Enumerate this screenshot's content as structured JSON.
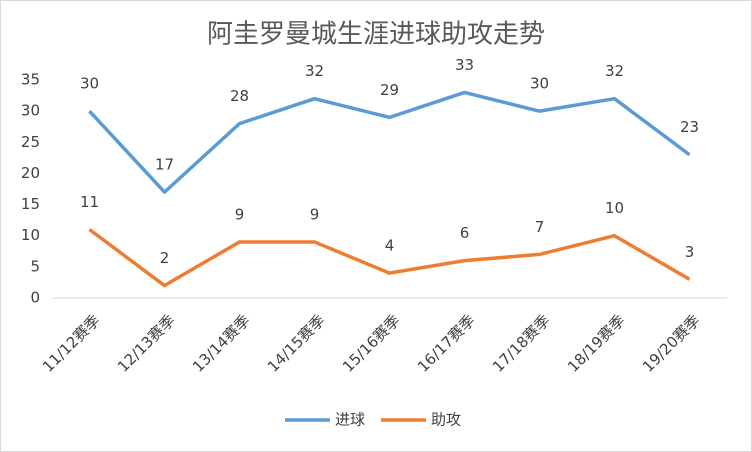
{
  "chart_data": {
    "type": "line",
    "title": "阿圭罗曼城生涯进球助攻走势",
    "categories": [
      "11/12赛季",
      "12/13赛季",
      "13/14赛季",
      "14/15赛季",
      "15/16赛季",
      "16/17赛季",
      "17/18赛季",
      "18/19赛季",
      "19/20赛季"
    ],
    "series": [
      {
        "name": "进球",
        "color": "#5b9bd5",
        "values": [
          30,
          17,
          28,
          32,
          29,
          33,
          30,
          32,
          23
        ]
      },
      {
        "name": "助攻",
        "color": "#ed7d31",
        "values": [
          11,
          2,
          9,
          9,
          4,
          6,
          7,
          10,
          3
        ]
      }
    ],
    "ylim": [
      0,
      35
    ],
    "yticks": [
      0,
      5,
      10,
      15,
      20,
      25,
      30,
      35
    ],
    "grid": false,
    "legend": "bottom"
  }
}
